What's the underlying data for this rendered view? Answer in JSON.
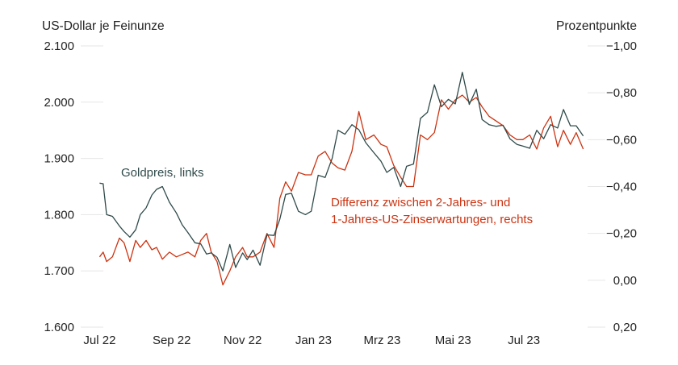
{
  "chart_data": {
    "type": "line",
    "ylabel_left": "US-Dollar je Feinunze",
    "ylabel_right": "Prozentpunkte",
    "y_left_ticks": [
      "1.600",
      "1.700",
      "1.800",
      "1.900",
      "2.000",
      "2.100"
    ],
    "y_left_range": [
      1600,
      2100
    ],
    "y_right_ticks": [
      "0,20",
      "0,00",
      "−0,20",
      "−0,40",
      "−0,60",
      "−0,80",
      "−1,00"
    ],
    "y_right_range": [
      0.2,
      -1.0
    ],
    "y_right_inverted": true,
    "x_ticks": [
      "Jul 22",
      "Sep 22",
      "Nov 22",
      "Jan 23",
      "Mrz 23",
      "Mai 23",
      "Jul 23"
    ],
    "x_range": [
      "2022-06-30",
      "2023-08-22"
    ],
    "grid": true,
    "series": [
      {
        "name": "Goldpreis, links",
        "axis": "left",
        "color": "#2f4a49",
        "x": [
          "2022-07-01",
          "2022-07-04",
          "2022-07-07",
          "2022-07-12",
          "2022-07-18",
          "2022-07-22",
          "2022-07-27",
          "2022-08-01",
          "2022-08-05",
          "2022-08-10",
          "2022-08-15",
          "2022-08-19",
          "2022-08-24",
          "2022-08-30",
          "2022-09-05",
          "2022-09-10",
          "2022-09-15",
          "2022-09-21",
          "2022-09-26",
          "2022-10-01",
          "2022-10-05",
          "2022-10-10",
          "2022-10-15",
          "2022-10-21",
          "2022-10-26",
          "2022-11-01",
          "2022-11-05",
          "2022-11-10",
          "2022-11-16",
          "2022-11-22",
          "2022-11-28",
          "2022-12-03",
          "2022-12-08",
          "2022-12-13",
          "2022-12-19",
          "2022-12-25",
          "2022-12-30",
          "2023-01-05",
          "2023-01-11",
          "2023-01-17",
          "2023-01-22",
          "2023-01-28",
          "2023-02-03",
          "2023-02-09",
          "2023-02-15",
          "2023-02-22",
          "2023-02-28",
          "2023-03-05",
          "2023-03-11",
          "2023-03-17",
          "2023-03-22",
          "2023-03-28",
          "2023-04-03",
          "2023-04-09",
          "2023-04-15",
          "2023-04-21",
          "2023-04-27",
          "2023-05-03",
          "2023-05-09",
          "2023-05-15",
          "2023-05-21",
          "2023-05-26",
          "2023-06-01",
          "2023-06-07",
          "2023-06-13",
          "2023-06-19",
          "2023-06-25",
          "2023-06-30",
          "2023-07-06",
          "2023-07-12",
          "2023-07-18",
          "2023-07-24",
          "2023-07-30",
          "2023-08-04",
          "2023-08-10",
          "2023-08-15",
          "2023-08-21"
        ],
        "values": [
          1856,
          1855,
          1800,
          1797,
          1780,
          1770,
          1760,
          1773,
          1800,
          1812,
          1835,
          1845,
          1850,
          1822,
          1803,
          1782,
          1768,
          1750,
          1748,
          1730,
          1732,
          1724,
          1700,
          1747,
          1706,
          1732,
          1720,
          1737,
          1710,
          1764,
          1763,
          1792,
          1836,
          1838,
          1806,
          1800,
          1806,
          1870,
          1866,
          1900,
          1950,
          1943,
          1960,
          1951,
          1928,
          1910,
          1895,
          1875,
          1884,
          1850,
          1886,
          1890,
          1971,
          1982,
          2031,
          1992,
          2005,
          1997,
          2053,
          1996,
          2023,
          1969,
          1960,
          1957,
          1959,
          1935,
          1925,
          1922,
          1918,
          1950,
          1935,
          1960,
          1954,
          1987,
          1958,
          1958,
          1940
        ]
      },
      {
        "name": "Differenz zwischen 2-Jahres- und 1-Jahres-US-Zinserwartungen, rechts",
        "axis": "right",
        "color": "#cc3311",
        "x": [
          "2022-07-01",
          "2022-07-04",
          "2022-07-07",
          "2022-07-12",
          "2022-07-18",
          "2022-07-22",
          "2022-07-27",
          "2022-08-01",
          "2022-08-05",
          "2022-08-10",
          "2022-08-15",
          "2022-08-19",
          "2022-08-24",
          "2022-08-30",
          "2022-09-05",
          "2022-09-10",
          "2022-09-15",
          "2022-09-21",
          "2022-09-26",
          "2022-10-01",
          "2022-10-05",
          "2022-10-10",
          "2022-10-15",
          "2022-10-21",
          "2022-10-26",
          "2022-11-01",
          "2022-11-05",
          "2022-11-10",
          "2022-11-16",
          "2022-11-22",
          "2022-11-28",
          "2022-12-03",
          "2022-12-08",
          "2022-12-13",
          "2022-12-19",
          "2022-12-25",
          "2022-12-30",
          "2023-01-05",
          "2023-01-11",
          "2023-01-17",
          "2023-01-22",
          "2023-01-28",
          "2023-02-03",
          "2023-02-09",
          "2023-02-15",
          "2023-02-22",
          "2023-02-28",
          "2023-03-05",
          "2023-03-11",
          "2023-03-17",
          "2023-03-22",
          "2023-03-28",
          "2023-04-03",
          "2023-04-09",
          "2023-04-15",
          "2023-04-21",
          "2023-04-27",
          "2023-05-03",
          "2023-05-09",
          "2023-05-15",
          "2023-05-21",
          "2023-05-26",
          "2023-06-01",
          "2023-06-07",
          "2023-06-13",
          "2023-06-19",
          "2023-06-25",
          "2023-06-30",
          "2023-07-06",
          "2023-07-12",
          "2023-07-18",
          "2023-07-24",
          "2023-07-30",
          "2023-08-04",
          "2023-08-10",
          "2023-08-15",
          "2023-08-21"
        ],
        "values": [
          -0.1,
          -0.12,
          -0.08,
          -0.1,
          -0.18,
          -0.16,
          -0.08,
          -0.17,
          -0.14,
          -0.17,
          -0.13,
          -0.14,
          -0.09,
          -0.12,
          -0.1,
          -0.11,
          -0.12,
          -0.1,
          -0.17,
          -0.2,
          -0.12,
          -0.08,
          0.02,
          -0.04,
          -0.1,
          -0.14,
          -0.1,
          -0.1,
          -0.12,
          -0.2,
          -0.14,
          -0.35,
          -0.42,
          -0.38,
          -0.46,
          -0.45,
          -0.45,
          -0.53,
          -0.55,
          -0.5,
          -0.48,
          -0.47,
          -0.55,
          -0.72,
          -0.6,
          -0.62,
          -0.58,
          -0.57,
          -0.49,
          -0.44,
          -0.4,
          -0.4,
          -0.62,
          -0.6,
          -0.63,
          -0.77,
          -0.73,
          -0.77,
          -0.79,
          -0.76,
          -0.78,
          -0.74,
          -0.7,
          -0.68,
          -0.66,
          -0.62,
          -0.6,
          -0.6,
          -0.62,
          -0.56,
          -0.65,
          -0.7,
          -0.57,
          -0.64,
          -0.58,
          -0.63,
          -0.56
        ]
      }
    ]
  }
}
